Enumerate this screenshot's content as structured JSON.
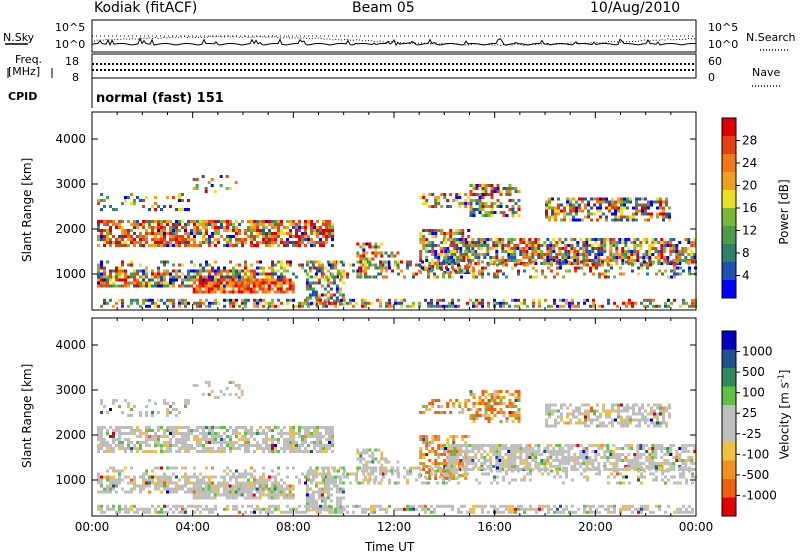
{
  "header": {
    "station": "Kodiak (fitACF)",
    "beam": "Beam 05",
    "date": "10/Aug/2010"
  },
  "status_panel": {
    "nsky_label": "N.Sky",
    "nsearch_label": "N.Search",
    "noise_tick_top": "10^5",
    "noise_tick_bottom": "10^0",
    "freq_label_line1": "Freq.",
    "freq_label_line2": "[MHz]",
    "freq_tick_top": "18",
    "freq_tick_bottom": "8",
    "nave_label": "Nave",
    "nave_tick_top": "60",
    "nave_tick_bottom": "0",
    "cpid_label": "CPID",
    "cpid_value": "normal (fast) 151"
  },
  "chart_data": [
    {
      "type": "heatmap",
      "ylabel": "Slant Range [km]",
      "ylim": [
        200,
        4600
      ],
      "yticks": [
        "1000",
        "2000",
        "3000",
        "4000"
      ],
      "xlim_hours": [
        0,
        24
      ],
      "colorbar": {
        "label": "Power [dB]",
        "ticks": [
          "4",
          "8",
          "12",
          "16",
          "20",
          "24",
          "28"
        ],
        "colors": [
          "#0000ff",
          "#1f4fb0",
          "#2f7f6a",
          "#4c9c4c",
          "#79b83a",
          "#e8e020",
          "#f0a020",
          "#f07818",
          "#e84010",
          "#e00000"
        ]
      }
    },
    {
      "type": "heatmap",
      "ylabel": "Slant Range [km]",
      "ylim": [
        200,
        4600
      ],
      "yticks": [
        "1000",
        "2000",
        "3000",
        "4000"
      ],
      "xlim_hours": [
        0,
        24
      ],
      "colorbar": {
        "label": "Velocity [m s^-1]",
        "ticks": [
          "1000",
          "500",
          "100",
          "25",
          "-25",
          "-100",
          "-500",
          "-1000"
        ],
        "colors": [
          "#0000c0",
          "#205090",
          "#2e8a5a",
          "#60c040",
          "#bebebe",
          "#bebebe",
          "#f0c040",
          "#f09020",
          "#f06010",
          "#e00000"
        ]
      }
    }
  ],
  "xaxis": {
    "label": "Time UT",
    "ticks": [
      "00:00",
      "04:00",
      "08:00",
      "12:00",
      "16:00",
      "20:00",
      "00:00"
    ]
  }
}
